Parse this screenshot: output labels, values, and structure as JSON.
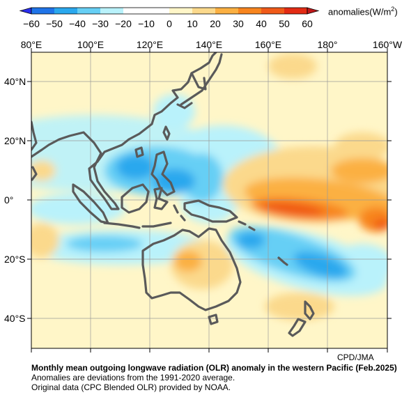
{
  "colorbar": {
    "unit_prefix": "anomalies(W/m",
    "unit_sup": "2",
    "unit_suffix": ")",
    "levels": [
      "−60",
      "−50",
      "−40",
      "−30",
      "−20",
      "−10",
      "0",
      "10",
      "20",
      "30",
      "40",
      "50",
      "60"
    ],
    "colors": [
      "#2b2ef0",
      "#1f74e8",
      "#2aa8ee",
      "#66cff5",
      "#b9f2fb",
      "#ffffff",
      "#ffffff",
      "#fff6c8",
      "#fbd98c",
      "#fbb042",
      "#f8851e",
      "#f05a19",
      "#e32b14",
      "#c0191a"
    ]
  },
  "map": {
    "lon_labels": [
      "80°E",
      "100°E",
      "120°E",
      "140°E",
      "160°E",
      "180°",
      "160°W"
    ],
    "lat_labels": [
      "40°N",
      "20°N",
      "0°",
      "20°S",
      "40°S"
    ],
    "land_outline_color": "#5a5a5a",
    "base_color": "#fff6c8"
  },
  "credit": "CPD/JMA",
  "caption": {
    "title": "Monthly mean outgoing longwave radiation (OLR) anomaly in the western Pacific (Feb.2025)",
    "line1": "Anomalies are deviations from the 1991-2020 average.",
    "line2": "Original data (CPC Blended OLR) provided by NOAA."
  }
}
